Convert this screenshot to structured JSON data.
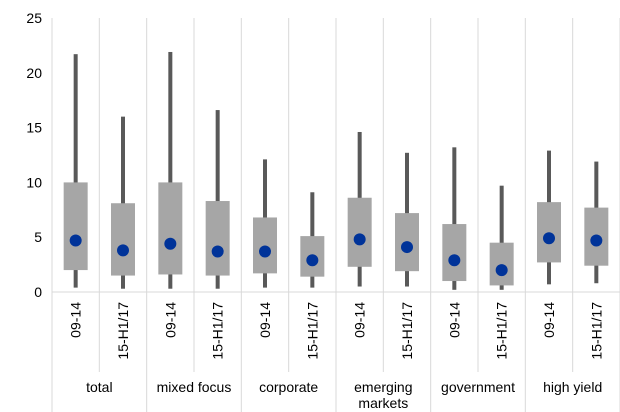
{
  "colors": {
    "box": "#a6a6a6",
    "whisker": "#595959",
    "marker": "#003399",
    "grid": "#d9d9d9",
    "text": "#000000"
  },
  "chart_data": {
    "type": "boxplot",
    "title": "",
    "xlabel": "",
    "ylabel": "",
    "ylim": [
      0,
      25
    ],
    "yticks": [
      0,
      5,
      10,
      15,
      20,
      25
    ],
    "grid": "vertical separators between groups",
    "legend": "none",
    "groups": [
      {
        "label": "total",
        "label_lines": [
          "total"
        ],
        "items": [
          {
            "period": "09-14",
            "min": 0.4,
            "q1": 2.0,
            "q3": 10.0,
            "max": 21.7,
            "marker": 4.7
          },
          {
            "period": "15-H1/17",
            "min": 0.3,
            "q1": 1.5,
            "q3": 8.1,
            "max": 16.0,
            "marker": 3.8
          }
        ]
      },
      {
        "label": "mixed focus",
        "label_lines": [
          "mixed focus"
        ],
        "items": [
          {
            "period": "09-14",
            "min": 0.3,
            "q1": 1.6,
            "q3": 10.0,
            "max": 21.9,
            "marker": 4.4
          },
          {
            "period": "15-H1/17",
            "min": 0.3,
            "q1": 1.5,
            "q3": 8.3,
            "max": 16.6,
            "marker": 3.7
          }
        ]
      },
      {
        "label": "corporate",
        "label_lines": [
          "corporate"
        ],
        "items": [
          {
            "period": "09-14",
            "min": 0.4,
            "q1": 1.7,
            "q3": 6.8,
            "max": 12.1,
            "marker": 3.7
          },
          {
            "period": "15-H1/17",
            "min": 0.4,
            "q1": 1.4,
            "q3": 5.1,
            "max": 9.1,
            "marker": 2.9
          }
        ]
      },
      {
        "label": "emerging markets",
        "label_lines": [
          "emerging",
          "markets"
        ],
        "items": [
          {
            "period": "09-14",
            "min": 0.5,
            "q1": 2.3,
            "q3": 8.6,
            "max": 14.6,
            "marker": 4.8
          },
          {
            "period": "15-H1/17",
            "min": 0.5,
            "q1": 1.9,
            "q3": 7.2,
            "max": 12.7,
            "marker": 4.1
          }
        ]
      },
      {
        "label": "government",
        "label_lines": [
          "government"
        ],
        "items": [
          {
            "period": "09-14",
            "min": 0.2,
            "q1": 1.0,
            "q3": 6.2,
            "max": 13.2,
            "marker": 2.9
          },
          {
            "period": "15-H1/17",
            "min": 0.2,
            "q1": 0.6,
            "q3": 4.5,
            "max": 9.7,
            "marker": 2.0
          }
        ]
      },
      {
        "label": "high yield",
        "label_lines": [
          "high yield"
        ],
        "items": [
          {
            "period": "09-14",
            "min": 0.7,
            "q1": 2.7,
            "q3": 8.2,
            "max": 12.9,
            "marker": 4.9
          },
          {
            "period": "15-H1/17",
            "min": 0.8,
            "q1": 2.4,
            "q3": 7.7,
            "max": 11.9,
            "marker": 4.7
          }
        ]
      }
    ]
  }
}
